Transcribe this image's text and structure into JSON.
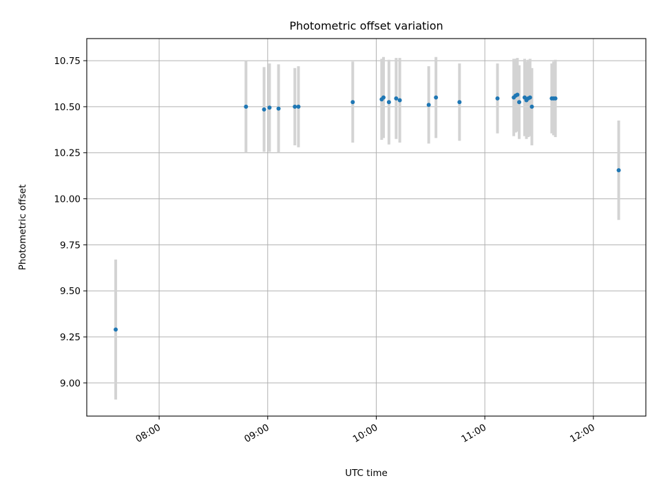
{
  "colors": {
    "point": "#1f77b4",
    "errorbar": "#d3d3d3",
    "grid": "#b0b0b0"
  },
  "chart_data": {
    "type": "scatter",
    "title": "Photometric offset variation",
    "xlabel": "UTC time",
    "ylabel": "Photometric offset",
    "grid": true,
    "x_unit": "UTC time (HH:MM)",
    "xlim": [
      "07:20",
      "12:29"
    ],
    "ylim": [
      8.82,
      10.87
    ],
    "x_ticks": [
      "08:00",
      "09:00",
      "10:00",
      "11:00",
      "12:00"
    ],
    "y_ticks": [
      "9.00",
      "9.25",
      "9.50",
      "9.75",
      "10.00",
      "10.25",
      "10.50",
      "10.75"
    ],
    "points": [
      {
        "x": "07:36",
        "y": 9.29,
        "err": 0.38
      },
      {
        "x": "08:48",
        "y": 10.5,
        "err": 0.25
      },
      {
        "x": "08:58",
        "y": 10.485,
        "err": 0.23
      },
      {
        "x": "09:01",
        "y": 10.495,
        "err": 0.24
      },
      {
        "x": "09:06",
        "y": 10.49,
        "err": 0.24
      },
      {
        "x": "09:15",
        "y": 10.5,
        "err": 0.21
      },
      {
        "x": "09:17",
        "y": 10.5,
        "err": 0.22
      },
      {
        "x": "09:47",
        "y": 10.525,
        "err": 0.22
      },
      {
        "x": "10:03",
        "y": 10.54,
        "err": 0.22
      },
      {
        "x": "10:04",
        "y": 10.55,
        "err": 0.22
      },
      {
        "x": "10:07",
        "y": 10.525,
        "err": 0.23
      },
      {
        "x": "10:11",
        "y": 10.545,
        "err": 0.22
      },
      {
        "x": "10:13",
        "y": 10.535,
        "err": 0.23
      },
      {
        "x": "10:29",
        "y": 10.51,
        "err": 0.21
      },
      {
        "x": "10:33",
        "y": 10.55,
        "err": 0.22
      },
      {
        "x": "10:46",
        "y": 10.525,
        "err": 0.21
      },
      {
        "x": "11:07",
        "y": 10.545,
        "err": 0.19
      },
      {
        "x": "11:16",
        "y": 10.55,
        "err": 0.21
      },
      {
        "x": "11:17",
        "y": 10.56,
        "err": 0.2
      },
      {
        "x": "11:18",
        "y": 10.565,
        "err": 0.2
      },
      {
        "x": "11:19",
        "y": 10.525,
        "err": 0.2
      },
      {
        "x": "11:22",
        "y": 10.55,
        "err": 0.21
      },
      {
        "x": "11:23",
        "y": 10.535,
        "err": 0.21
      },
      {
        "x": "11:24",
        "y": 10.545,
        "err": 0.21
      },
      {
        "x": "11:25",
        "y": 10.55,
        "err": 0.21
      },
      {
        "x": "11:26",
        "y": 10.5,
        "err": 0.21
      },
      {
        "x": "11:37",
        "y": 10.545,
        "err": 0.19
      },
      {
        "x": "11:38",
        "y": 10.545,
        "err": 0.2
      },
      {
        "x": "11:39",
        "y": 10.545,
        "err": 0.21
      },
      {
        "x": "12:14",
        "y": 10.155,
        "err": 0.27
      }
    ]
  }
}
